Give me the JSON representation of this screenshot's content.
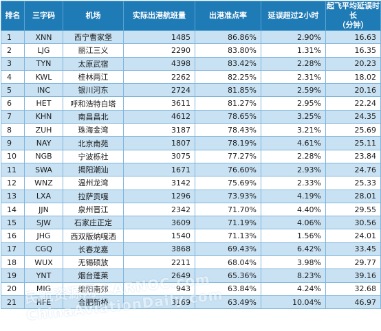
{
  "table": {
    "headers": {
      "rank": "排名",
      "code": "三字码",
      "airport": "机场",
      "flights": "实际出港航班量",
      "on_time_rate": "出港准点率",
      "delay_over_2h": "延误超过2小时",
      "avg_delay_line1": "起飞平均延误时长",
      "avg_delay_line2": "（分钟）"
    },
    "rows": [
      {
        "rank": "1",
        "code": "XNN",
        "airport": "西宁曹家堡",
        "flights": "1485",
        "on_time_rate": "86.86%",
        "delay_over_2h": "2.90%",
        "avg_delay": "16.63"
      },
      {
        "rank": "2",
        "code": "LJG",
        "airport": "丽江三义",
        "flights": "2290",
        "on_time_rate": "83.80%",
        "delay_over_2h": "1.31%",
        "avg_delay": "16.35"
      },
      {
        "rank": "3",
        "code": "TYN",
        "airport": "太原武宿",
        "flights": "4398",
        "on_time_rate": "83.42%",
        "delay_over_2h": "2.28%",
        "avg_delay": "20.23"
      },
      {
        "rank": "4",
        "code": "KWL",
        "airport": "桂林两江",
        "flights": "2262",
        "on_time_rate": "82.25%",
        "delay_over_2h": "2.31%",
        "avg_delay": "18.02"
      },
      {
        "rank": "5",
        "code": "INC",
        "airport": "银川河东",
        "flights": "2724",
        "on_time_rate": "81.85%",
        "delay_over_2h": "2.59%",
        "avg_delay": "20.16"
      },
      {
        "rank": "6",
        "code": "HET",
        "airport": "呼和浩特白塔",
        "flights": "3611",
        "on_time_rate": "81.27%",
        "delay_over_2h": "2.95%",
        "avg_delay": "22.24"
      },
      {
        "rank": "7",
        "code": "KHN",
        "airport": "南昌昌北",
        "flights": "4612",
        "on_time_rate": "78.65%",
        "delay_over_2h": "3.25%",
        "avg_delay": "24.35"
      },
      {
        "rank": "8",
        "code": "ZUH",
        "airport": "珠海金湾",
        "flights": "3187",
        "on_time_rate": "78.43%",
        "delay_over_2h": "3.21%",
        "avg_delay": "25.69"
      },
      {
        "rank": "9",
        "code": "NAY",
        "airport": "北京南苑",
        "flights": "1807",
        "on_time_rate": "78.19%",
        "delay_over_2h": "4.61%",
        "avg_delay": "25.11"
      },
      {
        "rank": "10",
        "code": "NGB",
        "airport": "宁波栎社",
        "flights": "3075",
        "on_time_rate": "77.27%",
        "delay_over_2h": "2.28%",
        "avg_delay": "23.84"
      },
      {
        "rank": "11",
        "code": "SWA",
        "airport": "揭阳潮汕",
        "flights": "1671",
        "on_time_rate": "76.60%",
        "delay_over_2h": "2.93%",
        "avg_delay": "24.76"
      },
      {
        "rank": "12",
        "code": "WNZ",
        "airport": "温州龙湾",
        "flights": "3142",
        "on_time_rate": "75.69%",
        "delay_over_2h": "2.33%",
        "avg_delay": "25.33"
      },
      {
        "rank": "13",
        "code": "LXA",
        "airport": "拉萨贡嘎",
        "flights": "1296",
        "on_time_rate": "73.93%",
        "delay_over_2h": "4.19%",
        "avg_delay": "28.01"
      },
      {
        "rank": "14",
        "code": "JJN",
        "airport": "泉州晋江",
        "flights": "2342",
        "on_time_rate": "71.70%",
        "delay_over_2h": "4.40%",
        "avg_delay": "29.55"
      },
      {
        "rank": "15",
        "code": "SJW",
        "airport": "石家庄正定",
        "flights": "3609",
        "on_time_rate": "71.19%",
        "delay_over_2h": "4.06%",
        "avg_delay": "30.56"
      },
      {
        "rank": "16",
        "code": "JHG",
        "airport": "西双版纳嘎洒",
        "flights": "1540",
        "on_time_rate": "71.13%",
        "delay_over_2h": "1.56%",
        "avg_delay": "24.01"
      },
      {
        "rank": "17",
        "code": "CGQ",
        "airport": "长春龙嘉",
        "flights": "3868",
        "on_time_rate": "69.43%",
        "delay_over_2h": "6.42%",
        "avg_delay": "33.45"
      },
      {
        "rank": "18",
        "code": "WUX",
        "airport": "无锡硕放",
        "flights": "2211",
        "on_time_rate": "68.04%",
        "delay_over_2h": "3.98%",
        "avg_delay": "29.77"
      },
      {
        "rank": "19",
        "code": "YNT",
        "airport": "烟台蓬莱",
        "flights": "2649",
        "on_time_rate": "65.36%",
        "delay_over_2h": "8.23%",
        "avg_delay": "39.16"
      },
      {
        "rank": "20",
        "code": "MIG",
        "airport": "绵阳南郊",
        "flights": "943",
        "on_time_rate": "63.84%",
        "delay_over_2h": "4.24%",
        "avg_delay": "32.68"
      },
      {
        "rank": "21",
        "code": "HFE",
        "airport": "合肥新桥",
        "flights": "3169",
        "on_time_rate": "63.49%",
        "delay_over_2h": "10.04%",
        "avg_delay": "46.97"
      }
    ]
  },
  "watermark": {
    "text": "民航资源网 CARNOC.com   ChinaAviationDaily.com"
  },
  "colors": {
    "header_bg": "#1f7bb6",
    "row_band": "#c9e2f3",
    "row_plain": "#ffffff",
    "border": "#7fb5db"
  }
}
